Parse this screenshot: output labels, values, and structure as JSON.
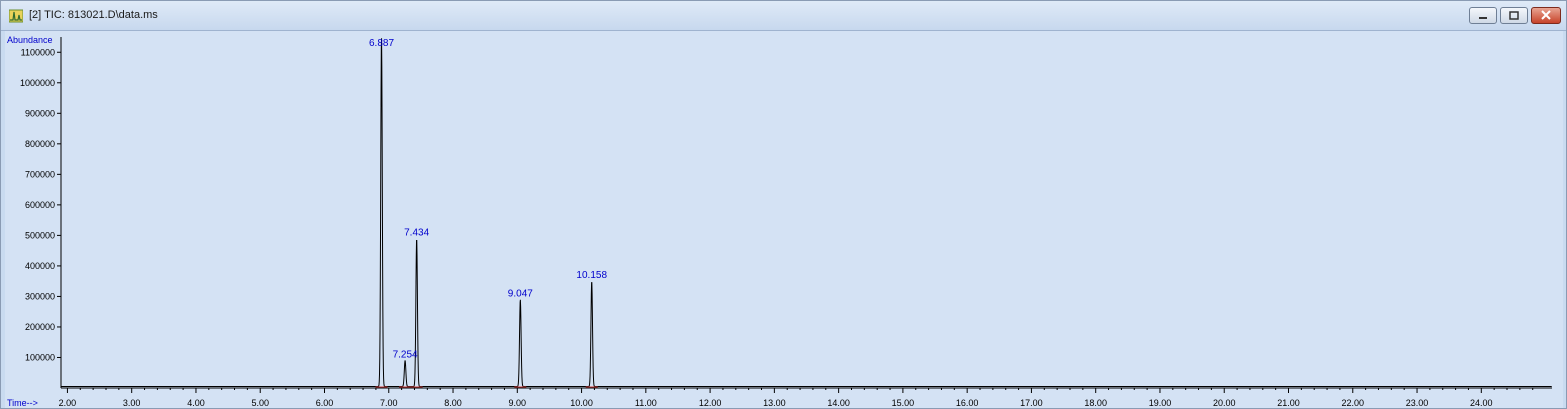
{
  "window": {
    "title": "[2] TIC: 813021.D\\data.ms",
    "icon": "chromatogram-icon",
    "controls": [
      "minimize-icon",
      "restore-icon",
      "close-icon"
    ],
    "background_color": "#d4e2f4",
    "trace_color": "#000000",
    "label_color": "#0000cc"
  },
  "chart_data": {
    "type": "line",
    "ylabel": "Abundance",
    "xlabel": "Time-->",
    "xlim": [
      1.9,
      25.1
    ],
    "ylim": [
      0,
      1150000
    ],
    "x_ticks": [
      "2.00",
      "3.00",
      "4.00",
      "5.00",
      "6.00",
      "7.00",
      "8.00",
      "9.00",
      "10.00",
      "11.00",
      "12.00",
      "13.00",
      "14.00",
      "15.00",
      "16.00",
      "17.00",
      "18.00",
      "19.00",
      "20.00",
      "21.00",
      "22.00",
      "23.00",
      "24.00"
    ],
    "y_ticks": [
      "100000",
      "200000",
      "300000",
      "400000",
      "500000",
      "600000",
      "700000",
      "800000",
      "900000",
      "1000000",
      "1100000"
    ],
    "peaks": [
      {
        "label": "6.887",
        "rt": 6.887,
        "abundance": 1150000
      },
      {
        "label": "7.254",
        "rt": 7.254,
        "abundance": 90000
      },
      {
        "label": "7.434",
        "rt": 7.434,
        "abundance": 490000
      },
      {
        "label": "9.047",
        "rt": 9.047,
        "abundance": 290000
      },
      {
        "label": "10.158",
        "rt": 10.158,
        "abundance": 350000
      }
    ],
    "baseline": 5000,
    "grid": false
  }
}
